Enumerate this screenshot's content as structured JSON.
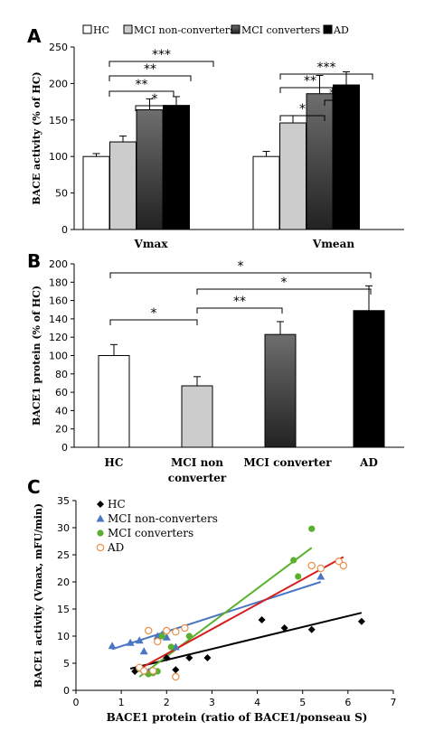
{
  "chart_data": [
    {
      "panel": "A",
      "type": "bar",
      "ylabel": "BACE activity (% of HC)",
      "ylim": [
        0,
        250
      ],
      "yticks": [
        0,
        50,
        100,
        150,
        200,
        250
      ],
      "legend": [
        "HC",
        "MCI non-converters",
        "MCI converters",
        "AD"
      ],
      "categories": [
        "Vmax",
        "Vmean"
      ],
      "series": [
        {
          "name": "HC",
          "color": "#ffffff",
          "values": [
            100,
            100
          ],
          "errors": [
            4,
            7
          ]
        },
        {
          "name": "MCI non-converters",
          "color": "#cccccc",
          "values": [
            120,
            146
          ],
          "errors": [
            8,
            10
          ]
        },
        {
          "name": "MCI converters",
          "color": "gradient-gray",
          "values": [
            164,
            186
          ],
          "errors": [
            15,
            25
          ]
        },
        {
          "name": "AD",
          "color": "#000000",
          "values": [
            170,
            198
          ],
          "errors": [
            12,
            18
          ]
        }
      ],
      "significance": [
        "**",
        "*",
        "**",
        "***",
        "*",
        "*",
        "**",
        "***"
      ]
    },
    {
      "panel": "B",
      "type": "bar",
      "ylabel": "BACE1 protein (% of HC)",
      "ylim": [
        0,
        200
      ],
      "yticks": [
        0,
        20,
        40,
        60,
        80,
        100,
        120,
        140,
        160,
        180,
        200
      ],
      "categories": [
        "HC",
        "MCI non converter",
        "MCI converter",
        "AD"
      ],
      "values": [
        100,
        67,
        123,
        149
      ],
      "errors": [
        12,
        10,
        14,
        27
      ],
      "significance": [
        "*",
        "**",
        "*",
        "*"
      ]
    },
    {
      "panel": "C",
      "type": "scatter",
      "xlabel": "BACE1 protein (ratio of BACE1/ponseau S)",
      "ylabel": "BACE1 activity (Vmax, mFU/min)",
      "xlim": [
        0,
        7
      ],
      "ylim": [
        0,
        35
      ],
      "xticks": [
        0,
        1,
        2,
        3,
        4,
        5,
        6,
        7
      ],
      "yticks": [
        0,
        5,
        10,
        15,
        20,
        25,
        30,
        35
      ],
      "series": [
        {
          "name": "HC",
          "marker": "diamond",
          "color": "#000000",
          "x": [
            1.3,
            1.5,
            1.7,
            2.0,
            2.2,
            2.9,
            4.1,
            4.6,
            5.2,
            6.3,
            2.5,
            1.6
          ],
          "y": [
            3.5,
            3.7,
            3.3,
            6.0,
            3.8,
            6.0,
            13.0,
            11.5,
            11.2,
            12.7,
            6.0,
            3.2
          ],
          "fit": [
            1.2,
            4.0,
            6.3,
            14.3
          ]
        },
        {
          "name": "MCI non-converters",
          "marker": "triangle",
          "color": "#4a76c4",
          "x": [
            0.8,
            1.2,
            1.4,
            1.5,
            1.8,
            2.0,
            2.2,
            1.6,
            5.4,
            1.9
          ],
          "y": [
            8.2,
            8.8,
            9.2,
            7.2,
            10.0,
            9.8,
            8.0,
            3.4,
            21.0,
            10.3
          ],
          "fit": [
            0.8,
            7.6,
            5.4,
            20.0
          ]
        },
        {
          "name": "MCI converters",
          "marker": "circle",
          "color": "#5ab030",
          "x": [
            1.4,
            1.6,
            1.8,
            1.9,
            2.1,
            2.5,
            4.9,
            5.2,
            1.7,
            4.8
          ],
          "y": [
            4.0,
            3.0,
            3.5,
            10.0,
            8.0,
            10.0,
            21.0,
            29.8,
            3.2,
            24.0
          ],
          "fit": [
            1.4,
            2.5,
            5.2,
            26.3
          ]
        },
        {
          "name": "AD",
          "marker": "open-circle",
          "color": "#e8904a",
          "x": [
            1.4,
            1.5,
            1.6,
            1.8,
            2.0,
            2.2,
            2.4,
            2.2,
            5.2,
            5.4,
            5.8,
            5.9,
            1.7
          ],
          "y": [
            4.2,
            3.6,
            11.0,
            9.0,
            11.0,
            10.8,
            11.5,
            2.5,
            23.0,
            22.5,
            23.8,
            23.0,
            3.6
          ],
          "fit": [
            1.3,
            3.5,
            5.9,
            24.6
          ]
        }
      ]
    }
  ],
  "panel_letters": {
    "a": "A",
    "b": "B",
    "c": "C"
  }
}
